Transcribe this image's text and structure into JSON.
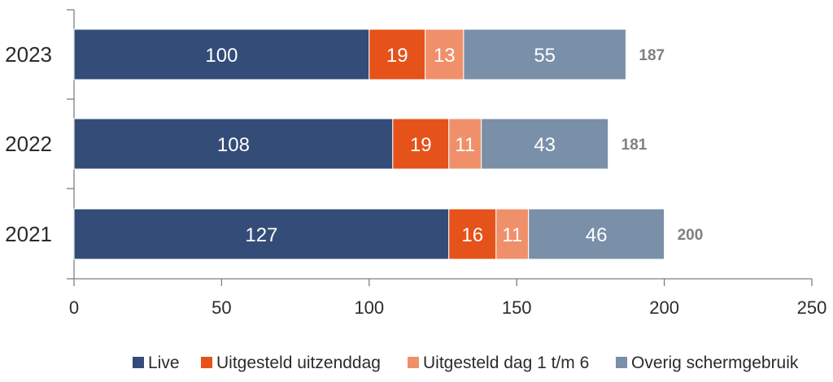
{
  "chart_data": {
    "type": "bar",
    "orientation": "horizontal",
    "stacked": true,
    "title": "",
    "xlabel": "",
    "ylabel": "",
    "categories": [
      "2023",
      "2022",
      "2021"
    ],
    "series": [
      {
        "name": "Live",
        "values": [
          100,
          108,
          127
        ],
        "color": "#344c78"
      },
      {
        "name": "Uitgesteld uitzenddag",
        "values": [
          19,
          19,
          16
        ],
        "color": "#e5521a"
      },
      {
        "name": "Uitgesteld dag 1 t/m 6",
        "values": [
          13,
          11,
          11
        ],
        "color": "#f0906a"
      },
      {
        "name": "Overig schermgebruik",
        "values": [
          55,
          43,
          46
        ],
        "color": "#7a8fa8"
      }
    ],
    "totals": [
      187,
      181,
      200
    ],
    "xlim": [
      0,
      250
    ],
    "xticks": [
      "0",
      "50",
      "100",
      "150",
      "200",
      "250"
    ],
    "legend_position": "bottom",
    "grid": false
  }
}
